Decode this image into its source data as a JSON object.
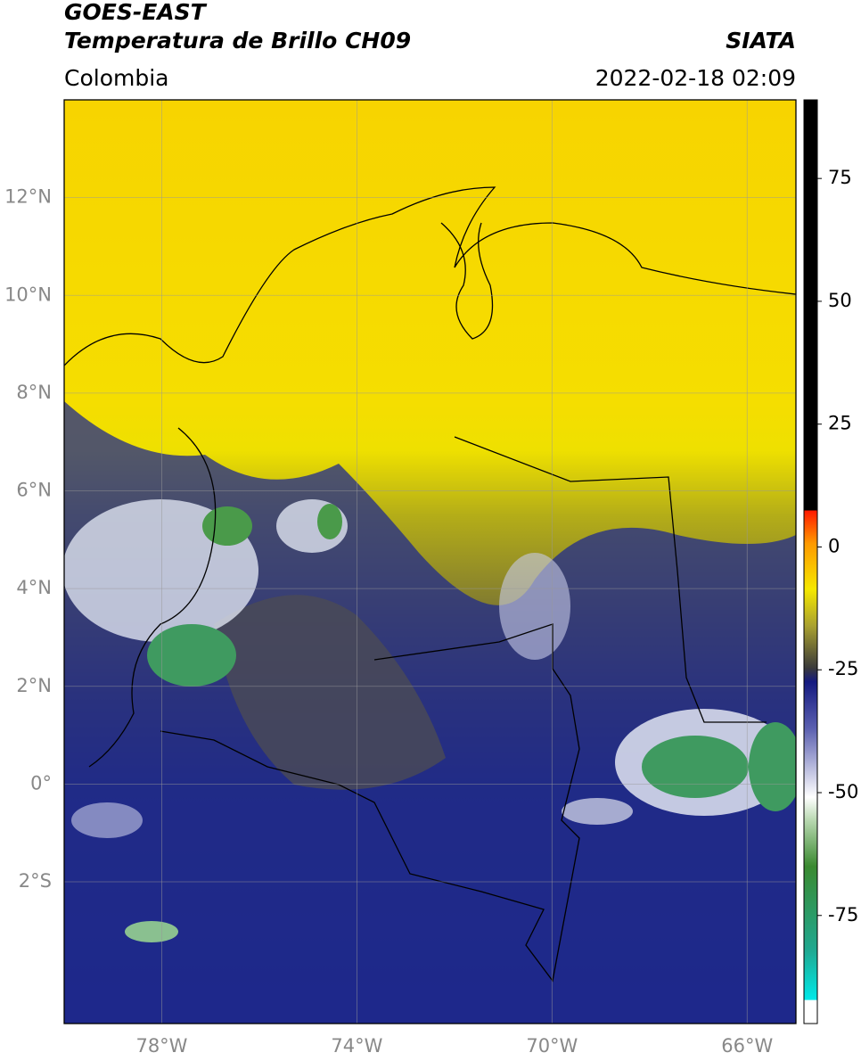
{
  "header": {
    "title": "GOES-EAST",
    "subtitle": "Temperatura de Brillo CH09",
    "source": "SIATA",
    "region": "Colombia",
    "datetime": "2022-02-18 02:09"
  },
  "map": {
    "lonlim": [
      -80,
      -65
    ],
    "latlim": [
      -4.9,
      14
    ],
    "lat_ticks": [
      {
        "value": 12,
        "label": "12°N"
      },
      {
        "value": 10,
        "label": "10°N"
      },
      {
        "value": 8,
        "label": "8°N"
      },
      {
        "value": 6,
        "label": "6°N"
      },
      {
        "value": 4,
        "label": "4°N"
      },
      {
        "value": 2,
        "label": "2°N"
      },
      {
        "value": 0,
        "label": "0°"
      },
      {
        "value": -2,
        "label": "2°S"
      }
    ],
    "lon_ticks": [
      {
        "value": -78,
        "label": "78°W"
      },
      {
        "value": -74,
        "label": "74°W"
      },
      {
        "value": -70,
        "label": "70°W"
      },
      {
        "value": -66,
        "label": "66°W"
      }
    ],
    "grid": true
  },
  "colorbar": {
    "lim": [
      -97,
      91
    ],
    "ticks": [
      75,
      50,
      25,
      0,
      -25,
      -50,
      -75
    ]
  }
}
